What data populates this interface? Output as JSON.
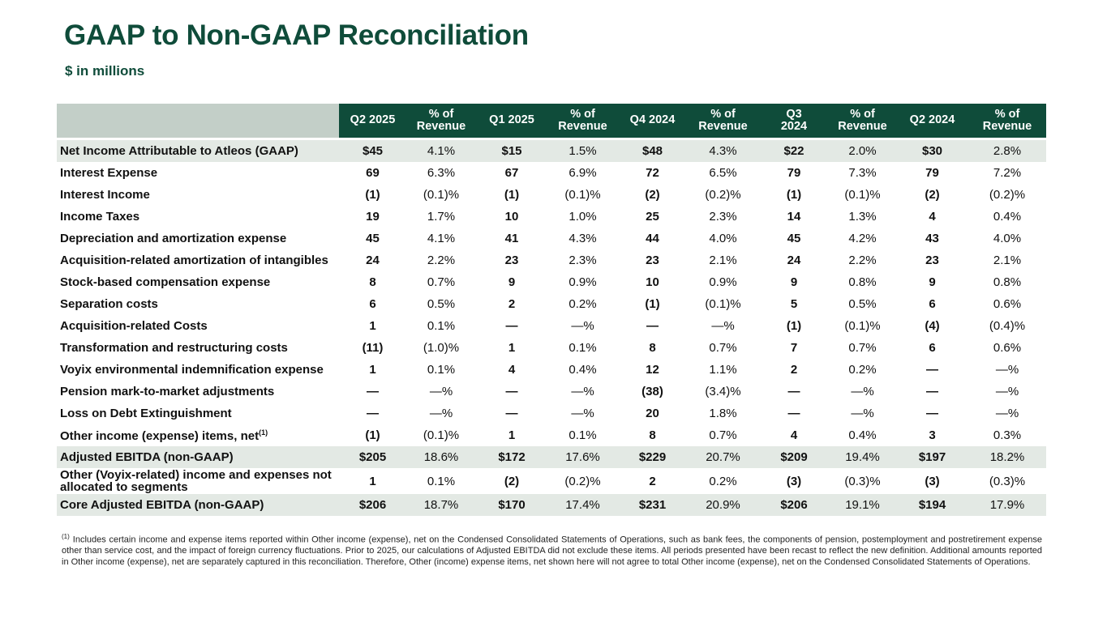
{
  "title": "GAAP to Non-GAAP Reconciliation",
  "subtitle": "$ in millions",
  "table": {
    "header": [
      "Q2 2025",
      "% of Revenue",
      "Q1 2025",
      "% of Revenue",
      "Q4 2024",
      "% of Revenue",
      "Q3 2024",
      "% of Revenue",
      "Q2 2024",
      "% of Revenue"
    ],
    "rows": [
      {
        "label": "Net Income Attributable to Atleos (GAAP)",
        "shaded": true,
        "cells": [
          "$45",
          "4.1%",
          "$15",
          "1.5%",
          "$48",
          "4.3%",
          "$22",
          "2.0%",
          "$30",
          "2.8%"
        ]
      },
      {
        "label": "Interest Expense",
        "cells": [
          "69",
          "6.3%",
          "67",
          "6.9%",
          "72",
          "6.5%",
          "79",
          "7.3%",
          "79",
          "7.2%"
        ]
      },
      {
        "label": "Interest Income",
        "cells": [
          "(1)",
          "(0.1)%",
          "(1)",
          "(0.1)%",
          "(2)",
          "(0.2)%",
          "(1)",
          "(0.1)%",
          "(2)",
          "(0.2)%"
        ]
      },
      {
        "label": "Income Taxes",
        "cells": [
          "19",
          "1.7%",
          "10",
          "1.0%",
          "25",
          "2.3%",
          "14",
          "1.3%",
          "4",
          "0.4%"
        ]
      },
      {
        "label": "Depreciation and amortization expense",
        "cells": [
          "45",
          "4.1%",
          "41",
          "4.3%",
          "44",
          "4.0%",
          "45",
          "4.2%",
          "43",
          "4.0%"
        ]
      },
      {
        "label": "Acquisition-related amortization of intangibles",
        "cells": [
          "24",
          "2.2%",
          "23",
          "2.3%",
          "23",
          "2.1%",
          "24",
          "2.2%",
          "23",
          "2.1%"
        ]
      },
      {
        "label": "Stock-based compensation expense",
        "cells": [
          "8",
          "0.7%",
          "9",
          "0.9%",
          "10",
          "0.9%",
          "9",
          "0.8%",
          "9",
          "0.8%"
        ]
      },
      {
        "label": "Separation costs",
        "cells": [
          "6",
          "0.5%",
          "2",
          "0.2%",
          "(1)",
          "(0.1)%",
          "5",
          "0.5%",
          "6",
          "0.6%"
        ]
      },
      {
        "label": "Acquisition-related Costs",
        "cells": [
          "1",
          "0.1%",
          "—",
          "—%",
          "—",
          "—%",
          "(1)",
          "(0.1)%",
          "(4)",
          "(0.4)%"
        ]
      },
      {
        "label": "Transformation and restructuring costs",
        "cells": [
          "(11)",
          "(1.0)%",
          "1",
          "0.1%",
          "8",
          "0.7%",
          "7",
          "0.7%",
          "6",
          "0.6%"
        ]
      },
      {
        "label": "Voyix environmental indemnification expense",
        "cells": [
          "1",
          "0.1%",
          "4",
          "0.4%",
          "12",
          "1.1%",
          "2",
          "0.2%",
          "—",
          "—%"
        ]
      },
      {
        "label": "Pension mark-to-market adjustments",
        "cells": [
          "—",
          "—%",
          "—",
          "—%",
          "(38)",
          "(3.4)%",
          "—",
          "—%",
          "—",
          "—%"
        ]
      },
      {
        "label": "Loss on Debt Extinguishment",
        "cells": [
          "—",
          "—%",
          "—",
          "—%",
          "20",
          "1.8%",
          "—",
          "—%",
          "—",
          "—%"
        ]
      },
      {
        "label": "Other income (expense) items, net",
        "note": "(1)",
        "cells": [
          "(1)",
          "(0.1)%",
          "1",
          "0.1%",
          "8",
          "0.7%",
          "4",
          "0.4%",
          "3",
          "0.3%"
        ]
      },
      {
        "label": "Adjusted EBITDA (non-GAAP)",
        "shaded": true,
        "cells": [
          "$205",
          "18.6%",
          "$172",
          "17.6%",
          "$229",
          "20.7%",
          "$209",
          "19.4%",
          "$197",
          "18.2%"
        ]
      },
      {
        "label": "Other (Voyix-related) income and expenses not allocated to segments",
        "cells": [
          "1",
          "0.1%",
          "(2)",
          "(0.2)%",
          "2",
          "0.2%",
          "(3)",
          "(0.3)%",
          "(3)",
          "(0.3)%"
        ]
      },
      {
        "label": "Core Adjusted EBITDA (non-GAAP)",
        "shaded": true,
        "cells": [
          "$206",
          "18.7%",
          "$170",
          "17.4%",
          "$231",
          "20.9%",
          "$206",
          "19.1%",
          "$194",
          "17.9%"
        ]
      }
    ]
  },
  "footnote": {
    "marker": "(1)",
    "text": "Includes certain income and expense items reported within Other income (expense), net on the Condensed Consolidated Statements of Operations, such as bank fees, the components of pension, postemployment and postretirement expense other than service cost, and the impact of foreign currency fluctuations. Prior to 2025, our calculations of Adjusted EBITDA did not exclude these items. All periods presented have been recast to reflect the new definition. Additional amounts reported in Other income (expense), net are separately captured in this reconciliation. Therefore, Other (income) expense items, net shown here will not agree to total Other income (expense), net on the Condensed Consolidated Statements of Operations."
  }
}
